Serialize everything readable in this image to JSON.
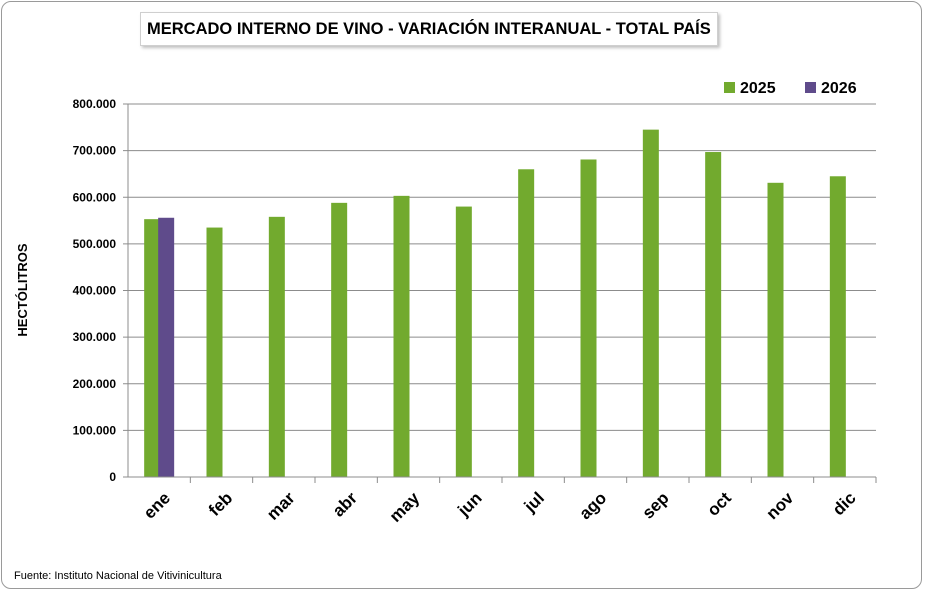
{
  "chart_data": {
    "type": "bar",
    "title": "MERCADO INTERNO DE VINO - VARIACIÓN INTERANUAL - TOTAL PAÍS",
    "ylabel": "HECTÓLITROS",
    "xlabel": "",
    "source": "Fuente: Instituto Nacional de Vitivinicultura",
    "categories": [
      "ene",
      "feb",
      "mar",
      "abr",
      "may",
      "jun",
      "jul",
      "ago",
      "sep",
      "oct",
      "nov",
      "dic"
    ],
    "ylim": [
      0,
      800000
    ],
    "yticks": [
      0,
      100000,
      200000,
      300000,
      400000,
      500000,
      600000,
      700000,
      800000
    ],
    "ytick_labels": [
      "0",
      "100.000",
      "200.000",
      "300.000",
      "400.000",
      "500.000",
      "600.000",
      "700.000",
      "800.000"
    ],
    "grid": true,
    "legend_position": "top-right",
    "series": [
      {
        "name": "2025",
        "color": "#72aa2e",
        "values": [
          553000,
          535000,
          558000,
          588000,
          603000,
          580000,
          660000,
          681000,
          745000,
          697000,
          631000,
          645000
        ]
      },
      {
        "name": "2026",
        "color": "#5f4b8b",
        "values": [
          556000,
          null,
          null,
          null,
          null,
          null,
          null,
          null,
          null,
          null,
          null,
          null
        ]
      }
    ]
  }
}
